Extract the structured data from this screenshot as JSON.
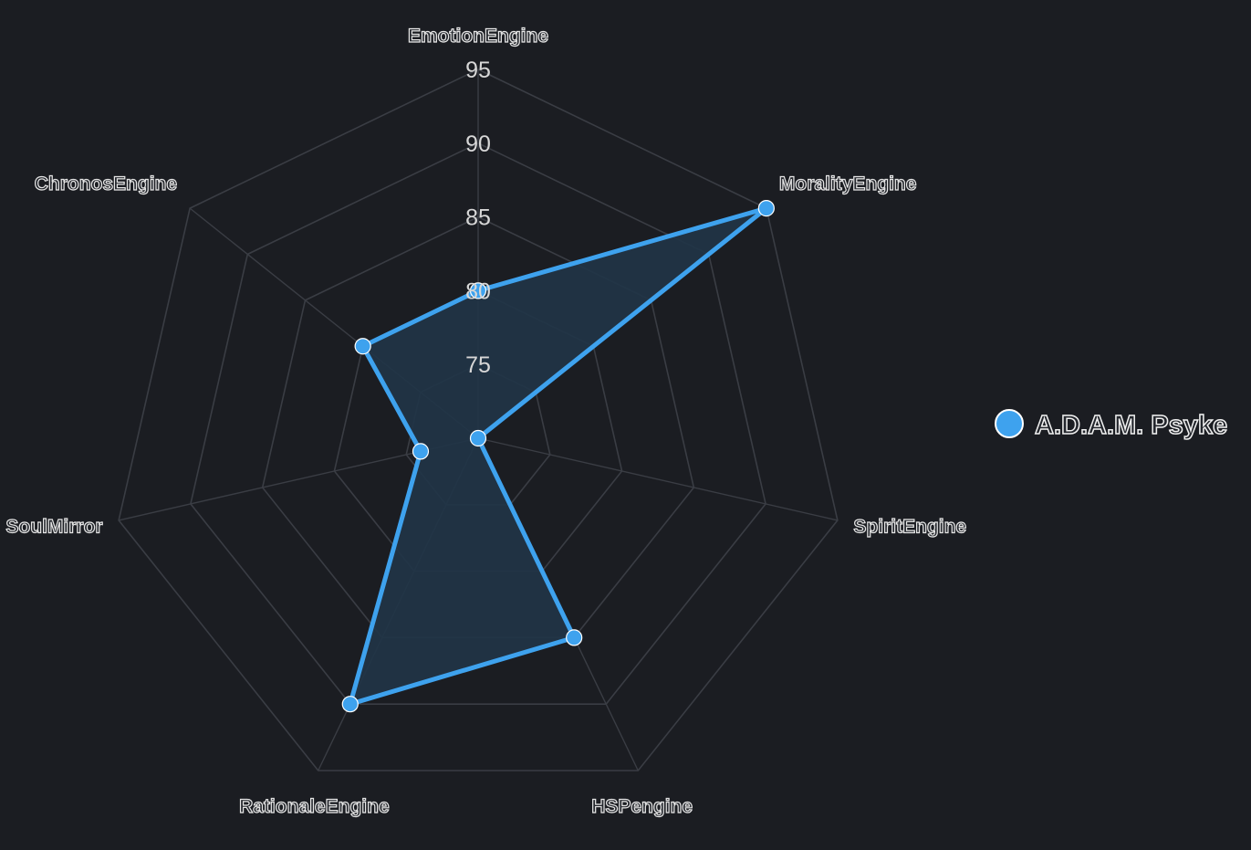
{
  "chart_data": {
    "type": "radar",
    "title": "",
    "axes": [
      "EmotionEngine",
      "MoralityEngine",
      "SpiritEngine",
      "HSPengine",
      "RationaleEngine",
      "SoulMirror",
      "ChronosEngine"
    ],
    "ticks": [
      75,
      80,
      85,
      90,
      95
    ],
    "range": [
      70,
      95
    ],
    "grid": true,
    "legend_position": "right",
    "series": [
      {
        "name": "A.D.A.M. Psyke",
        "values": [
          80,
          95,
          70,
          85,
          90,
          74,
          80
        ]
      }
    ]
  },
  "colors": {
    "background": "#1b1d22",
    "grid": "#3a3d44",
    "series_line": "#3ea2ee",
    "series_fill": "#213447",
    "tick_text": "#d7d7d7"
  }
}
